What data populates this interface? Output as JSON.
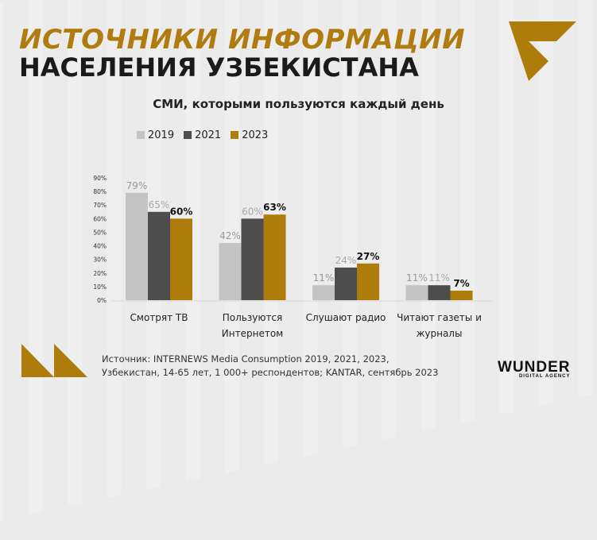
{
  "header": {
    "title_line1": "ИСТОЧНИКИ ИНФОРМАЦИИ",
    "title_line2": "НАСЕЛЕНИЯ УЗБЕКИСТАНА"
  },
  "chart_data": {
    "type": "bar",
    "title": "СМИ, которыми пользуются каждый день",
    "categories": [
      [
        "Смотрят ТВ"
      ],
      [
        "Пользуются",
        "Интернетом"
      ],
      [
        "Слушают радио"
      ],
      [
        "Читают газеты и",
        "журналы"
      ]
    ],
    "series": [
      {
        "name": "2019",
        "color": "#c4c4c4",
        "values": [
          79,
          42,
          11,
          11
        ]
      },
      {
        "name": "2021",
        "color": "#4d4d4d",
        "values": [
          65,
          60,
          24,
          11
        ]
      },
      {
        "name": "2023",
        "color": "#ae7c0a",
        "values": [
          60,
          63,
          27,
          7
        ]
      }
    ],
    "ylim": [
      0,
      90
    ],
    "yticks": [
      "0%",
      "10%",
      "20%",
      "30%",
      "40%",
      "50%",
      "60%",
      "70%",
      "80%",
      "90%"
    ],
    "legend": "top-left",
    "grid": false
  },
  "source": {
    "line1": "Источник: INTERNEWS Media Consumption 2019, 2021, 2023,",
    "line2": "Узбекистан, 14-65 лет, 1 000+ респондентов; KANTAR, сентябрь 2023"
  },
  "logo": {
    "name": "WUNDER",
    "tagline": "DIGITAL AGENCY"
  }
}
